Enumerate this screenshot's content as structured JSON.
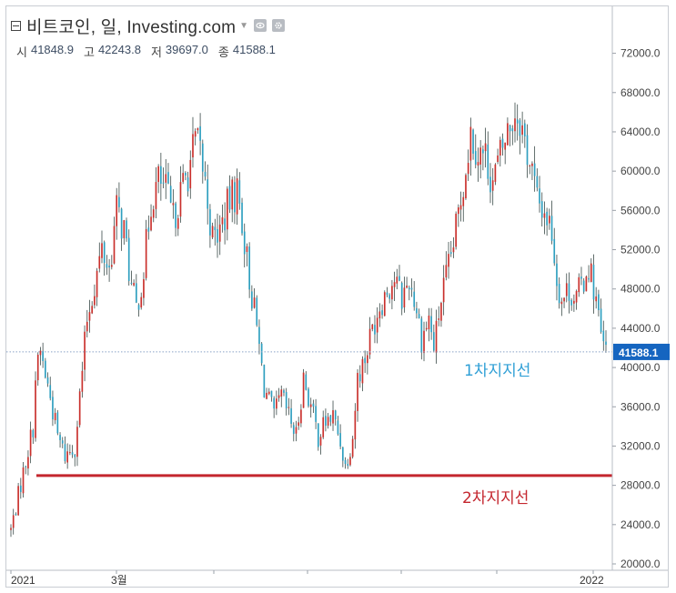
{
  "header": {
    "title": "비트코인, 일, Investing.com",
    "ohlc": [
      {
        "label": "시",
        "value": "41848.9"
      },
      {
        "label": "고",
        "value": "42243.8"
      },
      {
        "label": "저",
        "value": "39697.0"
      },
      {
        "label": "종",
        "value": "41588.1"
      }
    ]
  },
  "colors": {
    "up": "#c9302c",
    "down": "#2e9fbf",
    "wick": "#3a4a48",
    "support2": "#c4262e",
    "support1_text": "#2f9fd6",
    "price_tag": "#1565c0",
    "price_line": "#8aa2c8"
  },
  "chart_data": {
    "type": "candlestick",
    "title": "비트코인, 일, Investing.com",
    "ylim": [
      20000,
      74000
    ],
    "yticks": [
      "20000.0",
      "24000.0",
      "28000.0",
      "32000.0",
      "36000.0",
      "40000.0",
      "44000.0",
      "48000.0",
      "52000.0",
      "56000.0",
      "60000.0",
      "64000.0",
      "68000.0",
      "72000.0"
    ],
    "x_labels": [
      "2021",
      "3월",
      "2022"
    ],
    "last_price": 41588.1,
    "last_price_label": "41588.1",
    "support_lines": [
      {
        "label": "1차지지선",
        "value": 41588.1
      },
      {
        "label": "2차지지선",
        "value": 29000
      }
    ],
    "price_path": [
      [
        0,
        23500
      ],
      [
        3,
        27000
      ],
      [
        6,
        30500
      ],
      [
        9,
        34000
      ],
      [
        10,
        39000
      ],
      [
        12,
        41500
      ],
      [
        16,
        37000
      ],
      [
        19,
        33000
      ],
      [
        22,
        31000
      ],
      [
        26,
        32000
      ],
      [
        28,
        37000
      ],
      [
        31,
        45000
      ],
      [
        34,
        48500
      ],
      [
        37,
        52000
      ],
      [
        40,
        50000
      ],
      [
        43,
        56000
      ],
      [
        46,
        54000
      ],
      [
        49,
        48000
      ],
      [
        51,
        46000
      ],
      [
        54,
        50000
      ],
      [
        57,
        57000
      ],
      [
        60,
        59000
      ],
      [
        63,
        58000
      ],
      [
        66,
        55000
      ],
      [
        68,
        57000
      ],
      [
        72,
        60000
      ],
      [
        75,
        63000
      ],
      [
        77,
        62000
      ],
      [
        80,
        57000
      ],
      [
        82,
        53000
      ],
      [
        85,
        54000
      ],
      [
        89,
        57000
      ],
      [
        92,
        58000
      ],
      [
        94,
        55000
      ],
      [
        97,
        49000
      ],
      [
        100,
        44000
      ],
      [
        103,
        38000
      ],
      [
        107,
        35000
      ],
      [
        110,
        37000
      ],
      [
        113,
        35000
      ],
      [
        116,
        33000
      ],
      [
        119,
        39000
      ],
      [
        122,
        36000
      ],
      [
        125,
        33000
      ],
      [
        128,
        34500
      ],
      [
        131,
        35000
      ],
      [
        134,
        32500
      ],
      [
        136,
        30000
      ],
      [
        139,
        33000
      ],
      [
        141,
        39000
      ],
      [
        144,
        41000
      ],
      [
        147,
        44000
      ],
      [
        150,
        46500
      ],
      [
        153,
        48000
      ],
      [
        156,
        49000
      ],
      [
        159,
        47000
      ],
      [
        162,
        49000
      ],
      [
        165,
        46000
      ],
      [
        167,
        43000
      ],
      [
        170,
        45000
      ],
      [
        172,
        42000
      ],
      [
        175,
        47000
      ],
      [
        178,
        50000
      ],
      [
        181,
        54000
      ],
      [
        184,
        59000
      ],
      [
        187,
        64000
      ],
      [
        190,
        62000
      ],
      [
        193,
        61500
      ],
      [
        196,
        59000
      ],
      [
        199,
        61500
      ],
      [
        202,
        64000
      ],
      [
        205,
        66000
      ],
      [
        207,
        65500
      ],
      [
        209,
        63000
      ],
      [
        212,
        60000
      ],
      [
        214,
        57000
      ],
      [
        217,
        56000
      ],
      [
        220,
        54000
      ],
      [
        222,
        49000
      ],
      [
        224,
        47000
      ],
      [
        227,
        48000
      ],
      [
        230,
        47000
      ],
      [
        233,
        49000
      ],
      [
        235,
        50500
      ],
      [
        238,
        47000
      ],
      [
        240,
        43000
      ],
      [
        242,
        41500
      ]
    ]
  }
}
